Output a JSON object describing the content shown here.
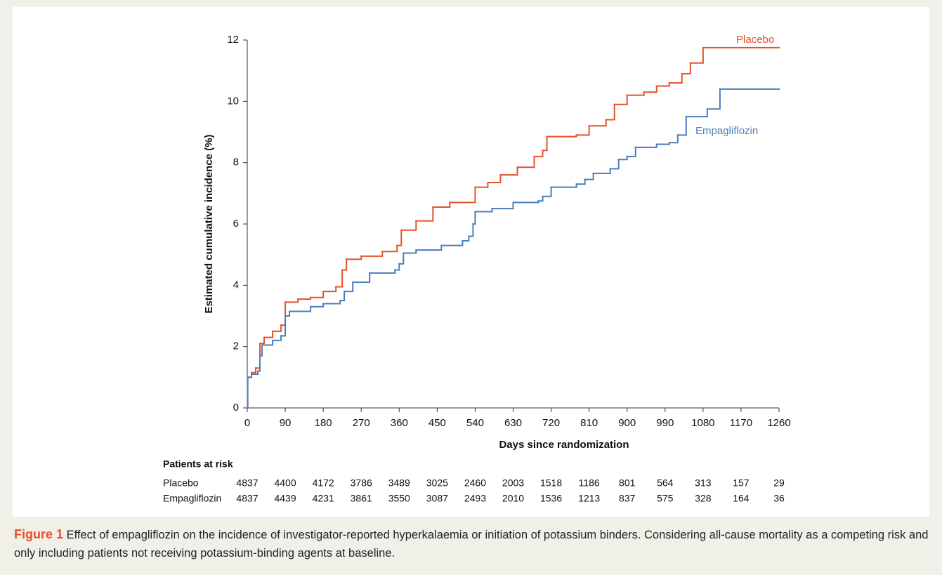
{
  "chart_data": {
    "type": "step",
    "y_label": "Estimated cumulative incidence (%)",
    "x_label": "Days since randomization",
    "xlim": [
      0,
      1260
    ],
    "xticks": [
      0,
      90,
      180,
      270,
      360,
      450,
      540,
      630,
      720,
      810,
      900,
      990,
      1080,
      1170,
      1260
    ],
    "ylim": [
      0,
      12
    ],
    "yticks": [
      0,
      2,
      4,
      6,
      8,
      10,
      12
    ],
    "legend": "inline",
    "series": [
      {
        "name": "Placebo",
        "color": "#e8502a",
        "x": [
          0,
          1,
          10,
          20,
          30,
          40,
          60,
          80,
          90,
          120,
          150,
          180,
          210,
          225,
          235,
          270,
          320,
          355,
          365,
          400,
          440,
          480,
          525,
          540,
          570,
          600,
          640,
          680,
          700,
          710,
          780,
          810,
          850,
          870,
          900,
          940,
          970,
          1000,
          1030,
          1050,
          1080,
          1260
        ],
        "values": [
          0,
          1.0,
          1.15,
          1.3,
          2.1,
          2.3,
          2.5,
          2.7,
          3.45,
          3.55,
          3.6,
          3.8,
          3.95,
          4.5,
          4.85,
          4.95,
          5.1,
          5.3,
          5.8,
          6.1,
          6.55,
          6.7,
          6.7,
          7.2,
          7.35,
          7.6,
          7.85,
          8.2,
          8.4,
          8.85,
          8.9,
          9.2,
          9.4,
          9.9,
          10.2,
          10.3,
          10.5,
          10.6,
          10.9,
          11.25,
          11.75,
          11.75
        ]
      },
      {
        "name": "Empagliflozin",
        "color": "#4a7ebb",
        "x": [
          0,
          1,
          10,
          25,
          30,
          35,
          60,
          80,
          90,
          100,
          150,
          180,
          220,
          230,
          250,
          290,
          350,
          360,
          370,
          400,
          460,
          510,
          525,
          535,
          540,
          580,
          630,
          690,
          700,
          720,
          780,
          800,
          820,
          860,
          880,
          900,
          920,
          970,
          1000,
          1020,
          1040,
          1090,
          1120,
          1260
        ],
        "values": [
          0,
          1.0,
          1.1,
          1.2,
          1.7,
          2.05,
          2.2,
          2.35,
          3.0,
          3.15,
          3.3,
          3.4,
          3.5,
          3.8,
          4.1,
          4.4,
          4.5,
          4.7,
          5.05,
          5.15,
          5.3,
          5.45,
          5.6,
          6.0,
          6.4,
          6.5,
          6.7,
          6.75,
          6.9,
          7.2,
          7.3,
          7.45,
          7.65,
          7.8,
          8.1,
          8.2,
          8.5,
          8.6,
          8.65,
          8.9,
          9.5,
          9.75,
          10.4,
          10.4
        ]
      }
    ],
    "at_risk": {
      "title": "Patients at risk",
      "rows": [
        {
          "label": "Placebo",
          "values": [
            4837,
            4400,
            4172,
            3786,
            3489,
            3025,
            2460,
            2003,
            1518,
            1186,
            801,
            564,
            313,
            157,
            29
          ]
        },
        {
          "label": "Empagliflozin",
          "values": [
            4837,
            4439,
            4231,
            3861,
            3550,
            3087,
            2493,
            2010,
            1536,
            1213,
            837,
            575,
            328,
            164,
            36
          ]
        }
      ]
    }
  },
  "caption": {
    "label": "Figure 1",
    "text": "Effect of empagliflozin on the incidence of investigator-reported hyperkalaemia or initiation of potassium binders. Considering all-cause mortality as a competing risk and only including patients not receiving potassium-binding agents at baseline."
  }
}
